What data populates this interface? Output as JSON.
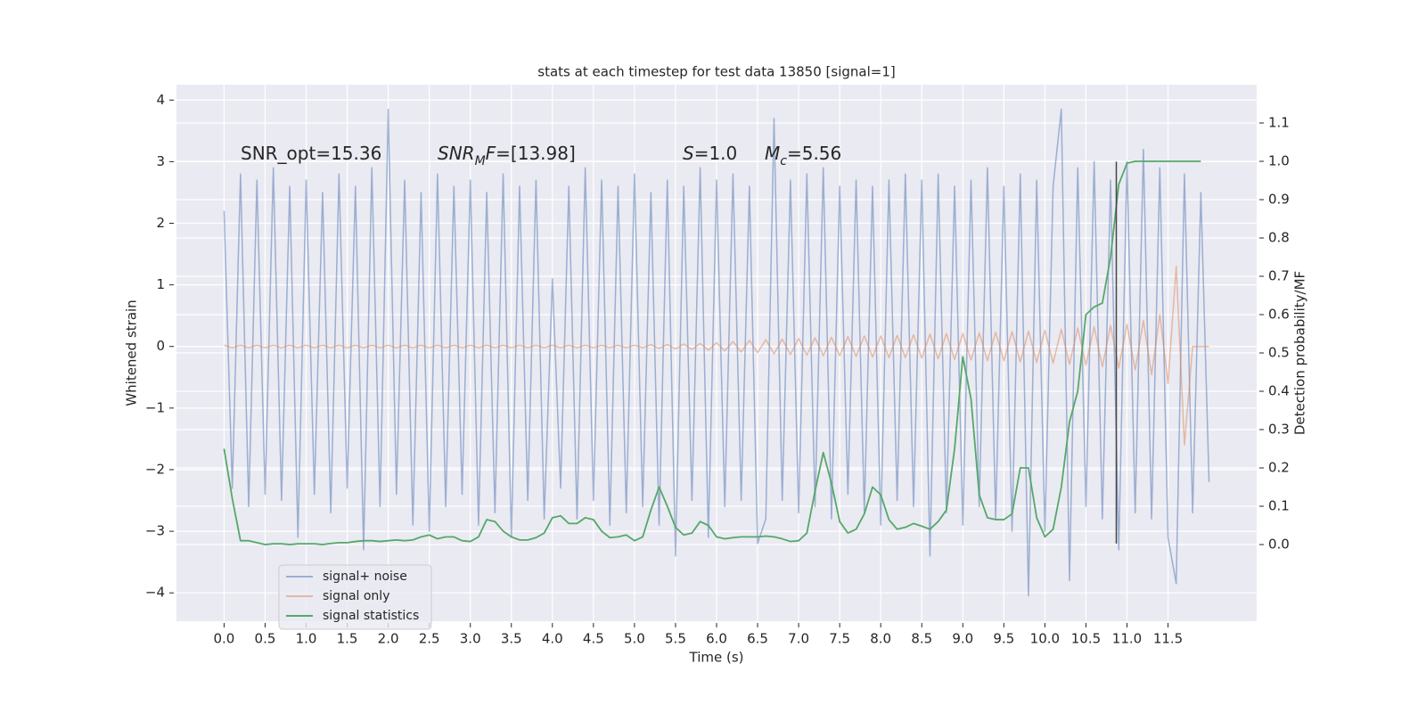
{
  "chart_data": {
    "type": "line",
    "title": "stats at each timestep for test data 13850 [signal=1]",
    "xlabel": "Time (s)",
    "ylabel": "Whitened strain",
    "y2label": "Detection probability/MF",
    "xlim": [
      -0.58,
      12.58
    ],
    "ylim": [
      -4.46,
      4.25
    ],
    "y2lim": [
      -0.2,
      1.2
    ],
    "grid": true,
    "legend": "lower left",
    "xticks": [
      {
        "value": 0,
        "label": "0.0"
      },
      0.5,
      {
        "value": 1,
        "label": "1.0"
      },
      1.5,
      {
        "value": 2,
        "label": "2.0"
      },
      2.5,
      {
        "value": 3,
        "label": "3.0"
      },
      3.5,
      {
        "value": 4,
        "label": "4.0"
      },
      4.5,
      {
        "value": 5,
        "label": "5.0"
      },
      5.5,
      {
        "value": 6,
        "label": "6.0"
      },
      6.5,
      {
        "value": 7,
        "label": "7.0"
      },
      7.5,
      {
        "value": 8,
        "label": "8.0"
      },
      8.5,
      {
        "value": 9,
        "label": "9.0"
      },
      9.5,
      {
        "value": 10,
        "label": "10.0"
      },
      10.5,
      {
        "value": 11,
        "label": "11.0"
      },
      11.5
    ],
    "yticks": [
      {
        "value": -4,
        "label": "−4"
      },
      {
        "value": -3,
        "label": "−3"
      },
      {
        "value": -2,
        "label": "−2"
      },
      {
        "value": -1,
        "label": "−1"
      },
      0,
      1,
      2,
      3,
      4
    ],
    "y2ticks": [
      {
        "value": 0,
        "label": "0.0"
      },
      0.1,
      0.2,
      0.3,
      0.4,
      0.5,
      0.6,
      0.7,
      0.8,
      0.9,
      {
        "value": 1,
        "label": "1.0"
      },
      1.1
    ],
    "annotations": [
      {
        "parts": [
          {
            "text": "SNR_opt=15.36"
          }
        ]
      },
      {
        "parts": [
          {
            "text": "SNR",
            "style": "italic"
          },
          {
            "text": "M",
            "style": "italic-sub"
          },
          {
            "text": "F",
            "style": "italic"
          },
          {
            "text": "=[13.98]"
          }
        ]
      },
      {
        "parts": [
          {
            "text": "S",
            "style": "italic"
          },
          {
            "text": "=1.0"
          }
        ]
      },
      {
        "parts": [
          {
            "text": "M",
            "style": "italic"
          },
          {
            "text": "c",
            "style": "italic-sub"
          },
          {
            "text": "=5.56"
          }
        ]
      }
    ],
    "vline": {
      "x": 10.87,
      "ymin": -3.2,
      "ymax": 3.0,
      "color": "#444444"
    },
    "series": [
      {
        "name": "signal+ noise",
        "color": "#4c72b0",
        "alpha": 0.5,
        "x": [
          0,
          0.1,
          0.2,
          0.3,
          0.4,
          0.5,
          0.6,
          0.7,
          0.8,
          0.9,
          1,
          1.1,
          1.2,
          1.3,
          1.4,
          1.5,
          1.6,
          1.7,
          1.8,
          1.9,
          2,
          2.1,
          2.2,
          2.3,
          2.4,
          2.5,
          2.6,
          2.7,
          2.8,
          2.9,
          3,
          3.1,
          3.2,
          3.3,
          3.4,
          3.5,
          3.6,
          3.7,
          3.8,
          3.9,
          4,
          4.1,
          4.2,
          4.3,
          4.4,
          4.5,
          4.6,
          4.7,
          4.8,
          4.9,
          5,
          5.1,
          5.2,
          5.3,
          5.4,
          5.5,
          5.6,
          5.7,
          5.8,
          5.9,
          6,
          6.1,
          6.2,
          6.3,
          6.4,
          6.5,
          6.6,
          6.7,
          6.8,
          6.9,
          7,
          7.1,
          7.2,
          7.3,
          7.4,
          7.5,
          7.6,
          7.7,
          7.8,
          7.9,
          8,
          8.1,
          8.2,
          8.3,
          8.4,
          8.5,
          8.6,
          8.7,
          8.8,
          8.9,
          9,
          9.1,
          9.2,
          9.3,
          9.4,
          9.5,
          9.6,
          9.7,
          9.8,
          9.9,
          10,
          10.1,
          10.2,
          10.3,
          10.4,
          10.5,
          10.6,
          10.7,
          10.8,
          10.9,
          11,
          11.1,
          11.2,
          11.3,
          11.4,
          11.5,
          11.6,
          11.7,
          11.8,
          11.9,
          12
        ],
        "values": [
          2.2,
          -2.3,
          2.8,
          -2.6,
          2.7,
          -2.4,
          2.9,
          -2.5,
          2.6,
          -3.1,
          2.7,
          -2.4,
          2.5,
          -2.7,
          2.8,
          -2.3,
          2.6,
          -3.3,
          2.9,
          -2.6,
          3.85,
          -2.4,
          2.7,
          -2.9,
          2.5,
          -3.0,
          2.8,
          -2.6,
          2.6,
          -2.4,
          2.7,
          -2.9,
          2.5,
          -2.7,
          2.8,
          -3.1,
          2.6,
          -2.5,
          2.7,
          -2.8,
          1.1,
          -2.3,
          2.6,
          -2.8,
          2.9,
          -2.5,
          2.7,
          -2.9,
          2.6,
          -2.7,
          2.8,
          -2.6,
          2.5,
          -2.9,
          2.7,
          -3.4,
          2.6,
          -2.5,
          2.9,
          -3.1,
          2.7,
          -2.6,
          2.8,
          -2.5,
          2.6,
          -3.2,
          -2.8,
          3.7,
          -2.5,
          2.7,
          -2.7,
          2.8,
          -2.6,
          2.9,
          -2.8,
          2.6,
          -2.4,
          2.7,
          -2.7,
          2.6,
          -2.9,
          2.7,
          -2.5,
          2.8,
          -2.6,
          2.7,
          -3.4,
          2.8,
          -2.7,
          2.6,
          -2.9,
          2.7,
          -2.6,
          2.9,
          -2.8,
          2.6,
          -3.0,
          2.8,
          -4.05,
          2.7,
          -3.0,
          2.6,
          3.85,
          -3.8,
          2.9,
          -2.6,
          3.0,
          -2.8,
          2.7,
          -3.3,
          3.0,
          -2.7,
          3.2,
          -2.8,
          2.9,
          -3.1,
          -3.85,
          2.8,
          -2.7,
          2.5,
          -2.2
        ]
      },
      {
        "name": "signal only",
        "color": "#dd8452",
        "alpha": 0.5,
        "x": [
          0,
          0.1,
          0.2,
          0.3,
          0.4,
          0.5,
          0.6,
          0.7,
          0.8,
          0.9,
          1,
          1.1,
          1.2,
          1.3,
          1.4,
          1.5,
          1.6,
          1.7,
          1.8,
          1.9,
          2,
          2.1,
          2.2,
          2.3,
          2.4,
          2.5,
          2.6,
          2.7,
          2.8,
          2.9,
          3,
          3.1,
          3.2,
          3.3,
          3.4,
          3.5,
          3.6,
          3.7,
          3.8,
          3.9,
          4,
          4.1,
          4.2,
          4.3,
          4.4,
          4.5,
          4.6,
          4.7,
          4.8,
          4.9,
          5,
          5.1,
          5.2,
          5.3,
          5.4,
          5.5,
          5.6,
          5.7,
          5.8,
          5.9,
          6,
          6.1,
          6.2,
          6.3,
          6.4,
          6.5,
          6.6,
          6.7,
          6.8,
          6.9,
          7,
          7.1,
          7.2,
          7.3,
          7.4,
          7.5,
          7.6,
          7.7,
          7.8,
          7.9,
          8,
          8.1,
          8.2,
          8.3,
          8.4,
          8.5,
          8.6,
          8.7,
          8.8,
          8.9,
          9,
          9.1,
          9.2,
          9.3,
          9.4,
          9.5,
          9.6,
          9.7,
          9.8,
          9.9,
          10,
          10.1,
          10.2,
          10.3,
          10.4,
          10.5,
          10.6,
          10.7,
          10.8,
          10.9,
          11,
          11.1,
          11.2,
          11.3,
          11.4,
          11.5,
          11.6,
          11.7,
          11.8,
          11.9,
          12
        ],
        "values": [
          0.02,
          -0.02,
          0.02,
          -0.02,
          0.02,
          -0.02,
          0.02,
          -0.02,
          0.02,
          -0.02,
          0.02,
          -0.02,
          0.02,
          -0.02,
          0.02,
          -0.02,
          0.02,
          -0.02,
          0.02,
          -0.02,
          0.02,
          -0.02,
          0.02,
          -0.02,
          0.02,
          -0.02,
          0.02,
          -0.02,
          0.02,
          -0.02,
          0.02,
          -0.02,
          0.02,
          -0.02,
          0.02,
          -0.02,
          0.02,
          -0.02,
          0.02,
          -0.02,
          0.02,
          -0.02,
          0.02,
          -0.02,
          0.02,
          -0.02,
          0.02,
          -0.02,
          0.02,
          -0.02,
          0.02,
          -0.02,
          0.03,
          -0.03,
          0.03,
          -0.04,
          0.04,
          -0.05,
          0.05,
          -0.06,
          0.06,
          -0.07,
          0.08,
          -0.09,
          0.1,
          -0.1,
          0.11,
          -0.12,
          0.12,
          -0.13,
          0.13,
          -0.14,
          0.14,
          -0.15,
          0.15,
          -0.15,
          0.16,
          -0.16,
          0.17,
          -0.17,
          0.17,
          -0.18,
          0.18,
          -0.18,
          0.19,
          -0.19,
          0.2,
          -0.2,
          0.21,
          -0.21,
          0.21,
          -0.22,
          0.22,
          -0.23,
          0.23,
          -0.23,
          0.24,
          -0.25,
          0.25,
          -0.26,
          0.26,
          -0.27,
          0.28,
          -0.29,
          0.3,
          -0.3,
          0.32,
          -0.33,
          0.34,
          -0.35,
          0.36,
          -0.38,
          0.42,
          -0.46,
          0.52,
          -0.6,
          1.3,
          -1.6,
          0,
          0,
          0
        ]
      },
      {
        "name": "signal statistics",
        "color": "#55a868",
        "alpha": 1,
        "axis": "y2",
        "x": [
          0,
          0.1,
          0.2,
          0.3,
          0.4,
          0.5,
          0.6,
          0.7,
          0.8,
          0.9,
          1,
          1.1,
          1.2,
          1.3,
          1.4,
          1.5,
          1.6,
          1.7,
          1.8,
          1.9,
          2,
          2.1,
          2.2,
          2.3,
          2.4,
          2.5,
          2.6,
          2.7,
          2.8,
          2.9,
          3,
          3.1,
          3.2,
          3.3,
          3.4,
          3.5,
          3.6,
          3.7,
          3.8,
          3.9,
          4,
          4.1,
          4.2,
          4.3,
          4.4,
          4.5,
          4.6,
          4.7,
          4.8,
          4.9,
          5,
          5.1,
          5.2,
          5.3,
          5.4,
          5.5,
          5.6,
          5.7,
          5.8,
          5.9,
          6,
          6.1,
          6.2,
          6.3,
          6.4,
          6.5,
          6.6,
          6.7,
          6.8,
          6.9,
          7,
          7.1,
          7.2,
          7.3,
          7.4,
          7.5,
          7.6,
          7.7,
          7.8,
          7.9,
          8,
          8.1,
          8.2,
          8.3,
          8.4,
          8.5,
          8.6,
          8.7,
          8.8,
          8.9,
          9,
          9.1,
          9.2,
          9.3,
          9.4,
          9.5,
          9.6,
          9.7,
          9.8,
          9.9,
          10,
          10.1,
          10.2,
          10.3,
          10.4,
          10.5,
          10.6,
          10.7,
          10.8,
          10.9,
          11,
          11.1,
          11.2,
          11.3,
          11.4,
          11.5,
          11.6,
          11.7,
          11.8,
          11.9
        ],
        "values": [
          0.25,
          0.12,
          0.01,
          0.01,
          0.005,
          0,
          0.002,
          0.002,
          0,
          0.002,
          0.002,
          0.002,
          0,
          0.003,
          0.005,
          0.005,
          0.008,
          0.01,
          0.01,
          0.008,
          0.01,
          0.012,
          0.01,
          0.012,
          0.02,
          0.025,
          0.015,
          0.02,
          0.02,
          0.01,
          0.008,
          0.02,
          0.065,
          0.06,
          0.035,
          0.02,
          0.012,
          0.012,
          0.018,
          0.03,
          0.07,
          0.075,
          0.055,
          0.055,
          0.07,
          0.065,
          0.035,
          0.018,
          0.02,
          0.025,
          0.01,
          0.02,
          0.09,
          0.15,
          0.1,
          0.045,
          0.025,
          0.03,
          0.06,
          0.05,
          0.02,
          0.015,
          0.018,
          0.02,
          0.02,
          0.02,
          0.022,
          0.02,
          0.015,
          0.008,
          0.01,
          0.03,
          0.14,
          0.24,
          0.16,
          0.06,
          0.03,
          0.04,
          0.08,
          0.15,
          0.13,
          0.065,
          0.04,
          0.045,
          0.055,
          0.048,
          0.04,
          0.06,
          0.09,
          0.25,
          0.49,
          0.38,
          0.13,
          0.07,
          0.065,
          0.065,
          0.08,
          0.2,
          0.2,
          0.07,
          0.02,
          0.04,
          0.15,
          0.32,
          0.4,
          0.6,
          0.62,
          0.63,
          0.75,
          0.94,
          0.995,
          1,
          1,
          1,
          1,
          1,
          1,
          1,
          1,
          1
        ]
      }
    ]
  }
}
